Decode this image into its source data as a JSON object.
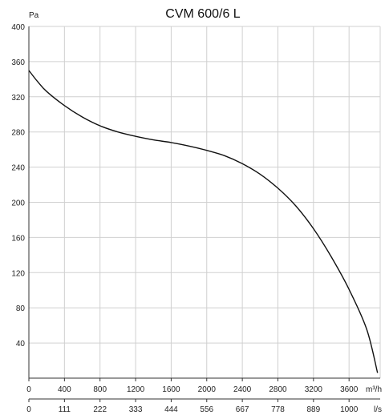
{
  "chart_data": {
    "type": "line",
    "title": "CVM 600/6 L",
    "ylabel": "Pa",
    "xlabel": "m³/h",
    "x2label": "l/s",
    "ylim": [
      0,
      400
    ],
    "xlim": [
      0,
      3950
    ],
    "grid": true,
    "y_ticks": [
      "40",
      "80",
      "120",
      "160",
      "200",
      "240",
      "280",
      "320",
      "360",
      "400"
    ],
    "y_tick_values": [
      40,
      80,
      120,
      160,
      200,
      240,
      280,
      320,
      360,
      400
    ],
    "x_ticks": [
      "0",
      "400",
      "800",
      "1200",
      "1600",
      "2000",
      "2400",
      "2800",
      "3200",
      "3600"
    ],
    "x_tick_values": [
      0,
      400,
      800,
      1200,
      1600,
      2000,
      2400,
      2800,
      3200,
      3600
    ],
    "x2_ticks": [
      "0",
      "111",
      "222",
      "333",
      "444",
      "556",
      "667",
      "778",
      "889",
      "1000"
    ],
    "series": [
      {
        "x": [
          0,
          100,
          200,
          400,
          600,
          800,
          1000,
          1200,
          1400,
          1600,
          1800,
          2000,
          2200,
          2400,
          2600,
          2800,
          3000,
          3200,
          3400,
          3600,
          3800,
          3920
        ],
        "y": [
          350,
          337,
          326,
          310,
          297,
          287,
          280,
          275,
          271,
          268,
          264,
          259,
          253,
          244,
          232,
          216,
          196,
          170,
          138,
          101,
          55,
          6
        ]
      }
    ]
  }
}
